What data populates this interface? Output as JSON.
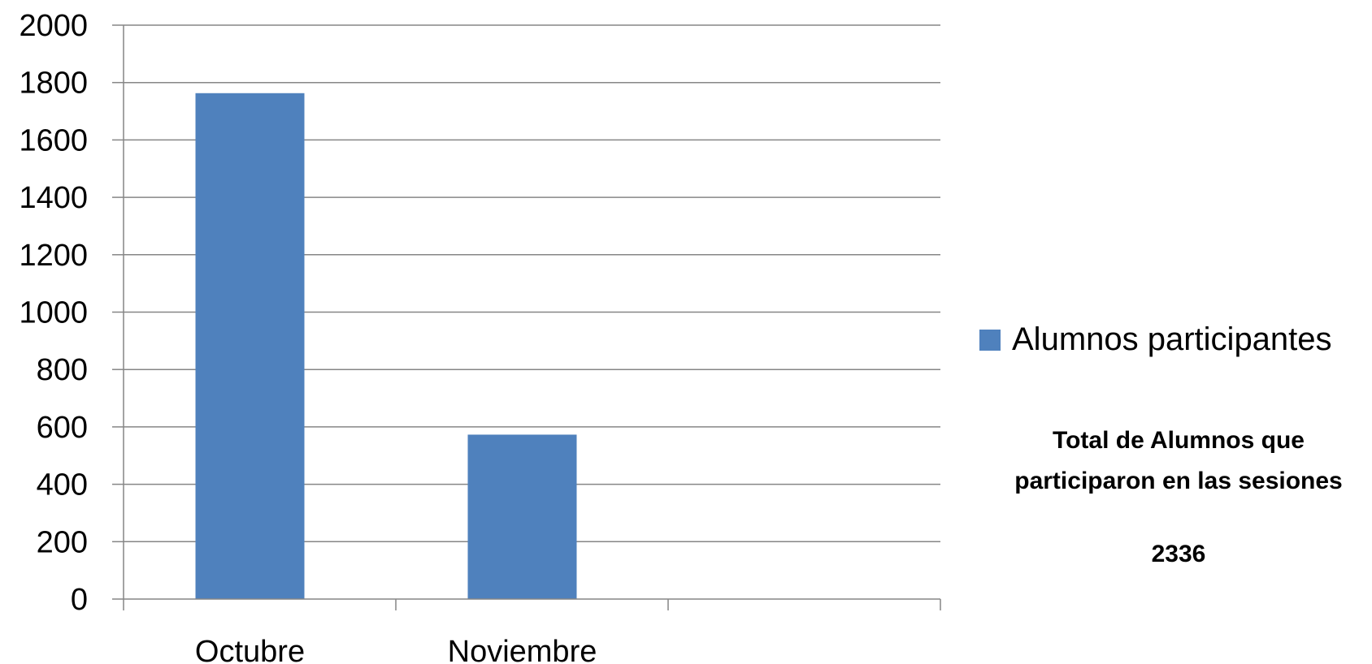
{
  "chart_data": {
    "type": "bar",
    "categories": [
      "Octubre",
      "Noviembre",
      ""
    ],
    "series": [
      {
        "name": "Alumnos participantes",
        "values": [
          1763,
          573,
          null
        ],
        "color": "#4F81BD"
      }
    ],
    "ylim": [
      0,
      2000
    ],
    "yticks": [
      0,
      200,
      400,
      600,
      800,
      1000,
      1200,
      1400,
      1600,
      1800,
      2000
    ],
    "grid": true,
    "legend": "right",
    "title": "",
    "xlabel": "",
    "ylabel": ""
  },
  "note": {
    "line1": "Total de Alumnos que",
    "line2": "participaron en las sesiones",
    "total": "2336"
  }
}
